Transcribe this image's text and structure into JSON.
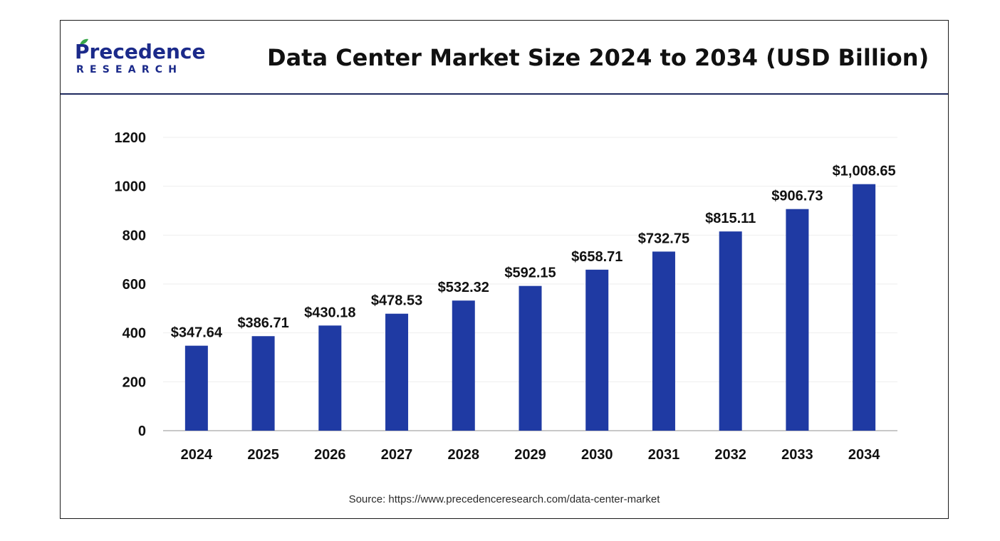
{
  "header": {
    "logo": {
      "wordmark": "Precedence",
      "subtext": "RESEARCH"
    },
    "title": "Data Center Market Size 2024 to 2034 (USD Billion)"
  },
  "colors": {
    "bar": "#1f3aa3",
    "brand": "#1b2a8a",
    "header_rule": "#1f2a5e",
    "grid": "#eeeeee",
    "axis": "#c8c8c8"
  },
  "chart_data": {
    "type": "bar",
    "title": "Data Center Market Size 2024 to 2034 (USD Billion)",
    "categories": [
      "2024",
      "2025",
      "2026",
      "2027",
      "2028",
      "2029",
      "2030",
      "2031",
      "2032",
      "2033",
      "2034"
    ],
    "values": [
      347.64,
      386.71,
      430.18,
      478.53,
      532.32,
      592.15,
      658.71,
      732.75,
      815.11,
      906.73,
      1008.65
    ],
    "data_labels": [
      "$347.64",
      "$386.71",
      "$430.18",
      "$478.53",
      "$532.32",
      "$592.15",
      "$658.71",
      "$732.75",
      "$815.11",
      "$906.73",
      "$1,008.65"
    ],
    "y_ticks": [
      0,
      200,
      400,
      600,
      800,
      1000,
      1200
    ],
    "ylim": [
      0,
      1200
    ],
    "xlabel": "",
    "ylabel": "",
    "grid": true,
    "legend": "none"
  },
  "footer": {
    "source": "Source: https://www.precedenceresearch.com/data-center-market"
  }
}
